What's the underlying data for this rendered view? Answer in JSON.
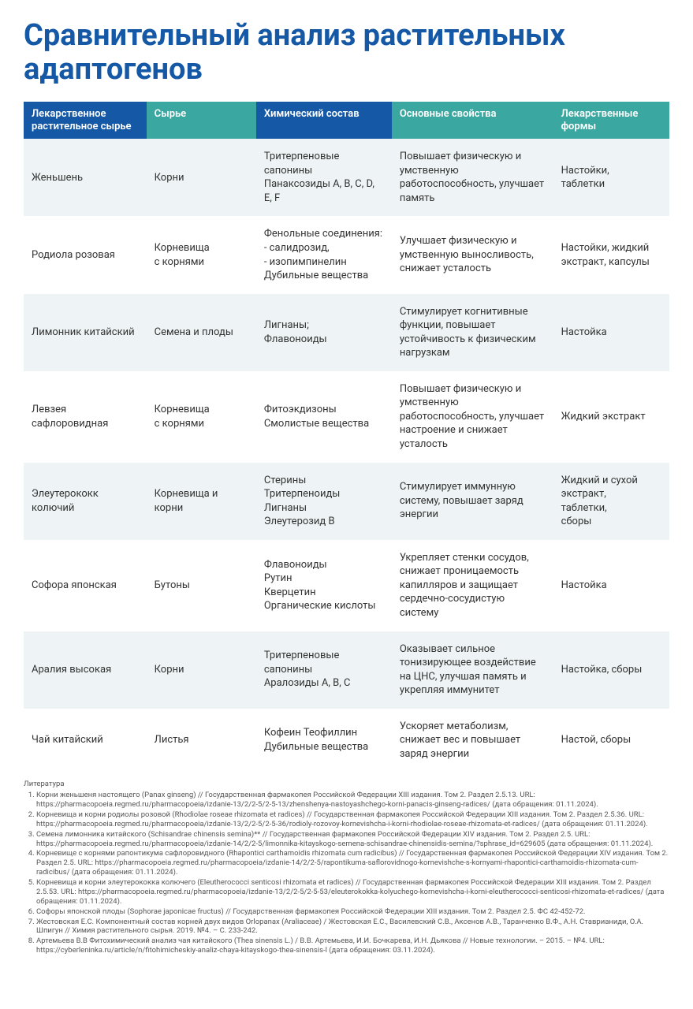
{
  "title": "Сравнительный анализ растительных адаптогенов",
  "table": {
    "headers": [
      {
        "text": "Лекарственное растительное сырье",
        "style": "blue"
      },
      {
        "text": "Сырье",
        "style": "teal"
      },
      {
        "text": "Химический состав",
        "style": "blue"
      },
      {
        "text": "Основные свойства",
        "style": "teal"
      },
      {
        "text": "Лекарственные формы",
        "style": "teal"
      }
    ],
    "row_bg_odd": "#eef4f5",
    "row_bg_even": "#ffffff",
    "header_bg_blue": "#1558a6",
    "header_bg_teal": "#3aa8a0",
    "header_text_color": "#ffffff",
    "body_text_color": "#333333",
    "body_fontsize": 13,
    "rows": [
      {
        "name": "Женьшень",
        "raw": "Корни",
        "chem": "Тритерпеновые сапонины\nПанаксозиды А, В, С, D, E, F",
        "prop": "Повышает физическую и умственную работоспособность, улучшает память",
        "form": "Настойки,\nтаблетки"
      },
      {
        "name": "Родиола розовая",
        "raw": "Корневища\nс корнями",
        "chem": "Фенольные соединения:\n- салидрозид,\n- изопимпинелин\nДубильные вещества",
        "prop": "Улучшает физическую и умственную выносливость, снижает усталость",
        "form": "Настойки, жидкий экстракт, капсулы"
      },
      {
        "name": "Лимонник китайский",
        "raw": "Семена и плоды",
        "chem": "Лигнаны;\nФлавоноиды",
        "prop": "Стимулирует когнитивные функции, повышает устойчивость к физическим нагрузкам",
        "form": "Настойка"
      },
      {
        "name": "Левзея сафлоровидная",
        "raw": "Корневища\nс корнями",
        "chem": "Фитоэкдизоны\nСмолистые вещества",
        "prop": "Повышает физическую и умственную работоспособность, улучшает настроение и снижает усталость",
        "form": "Жидкий экстракт"
      },
      {
        "name": "Элеутерококк колючий",
        "raw": "Корневища и корни",
        "chem": "Стерины\nТритерпеноиды\nЛигнаны\nЭлеутерозид В",
        "prop": "Стимулирует иммунную систему, повышает заряд энергии",
        "form": "Жидкий и сухой экстракт,\nтаблетки,\nсборы"
      },
      {
        "name": "Софора японская",
        "raw": "Бутоны",
        "chem": "Флавоноиды\nРутин\nКверцетин\nОрганические кислоты",
        "prop": "Укрепляет стенки сосудов, снижает проницаемость капилляров и защищает сердечно-сосудистую систему",
        "form": "Настойка"
      },
      {
        "name": "Аралия высокая",
        "raw": "Корни",
        "chem": "Тритерпеновые сапонины\nАралозиды А, В, С",
        "prop": "Оказывает сильное тонизирующее воздействие на ЦНС, улучшая память и укрепляя иммунитет",
        "form": "Настойка, сборы"
      },
      {
        "name": "Чай китайский",
        "raw": "Листья",
        "chem": "Кофеин Теофиллин\nДубильные вещества",
        "prop": "Ускоряет метаболизм, снижает вес и повышает заряд энергии",
        "form": "Настой, сборы"
      }
    ]
  },
  "refs": {
    "title": "Литература",
    "items": [
      "Корни женьшеня настоящего (Panax ginseng) // Государственная фармакопея Российской Федерации XIII издания. Том 2. Раздел 2.5.13. URL: https://pharmacopoeia.regmed.ru/pharmacopoeia/izdanie-13/2/2-5/2-5-13/zhenshenya-nastoyashchego-korni-panacis-ginseng-radices/ (дата обращения: 01.11.2024).",
      "Корневища и корни родиолы розовой (Rhodiolae roseae rhizomata et radices) // Государственная фармакопея Российской Федерации XIII издания. Том 2. Раздел 2.5.36. URL: https://pharmacopoeia.regmed.ru/pharmacopoeia/izdanie-13/2/2-5/2-5-36/rodioly-rozovoy-kornevishcha-i-korni-rhodiolae-roseae-rhizomata-et-radices/ (дата обращения: 01.11.2024).",
      "Семена лимонника китайского (Schisandrae chinensis semina)** // Государственная фармакопея Российской Федерации XIV издания. Том 2. Раздел 2.5. URL: https://pharmacopoeia.regmed.ru/pharmacopoeia/izdanie-14/2/2-5/limonnika-kitayskogo-semena-schisandrae-chinensidis-semina/?sphrase_id=629605 (дата обращения: 01.11.2024).",
      "Корневище с корнями рапонтикума сафлоровидного (Rhapontici carthamoidis rhizomata cum radicibus) // Государственная фармакопея Российской Федерации XIV издания. Том 2. Раздел 2.5. URL: https://pharmacopoeia.regmed.ru/pharmacopoeia/izdanie-14/2/2-5/rapontikuma-saflorovidnogo-kornevishche-s-kornyami-rhapontici-carthamoidis-rhizomata-cum-radicibus/ (дата обращения: 01.11.2024).",
      "Корневища и корни элеутерококка колючего (Eleutherococci senticosi rhizomata et radices) // Государственная фармакопея Российской Федерации XIII издания. Том 2. Раздел 2.5.53. URL: https://pharmacopoeia.regmed.ru/pharmacopoeia/izdanie-13/2/2-5/2-5-53/eleuterokokka-kolyuchego-kornevishcha-i-korni-eleutherococci-senticosi-rhizomata-et-radices/ (дата обращения: 01.11.2024).",
      "Софоры японской плоды (Sophorae japonicae fructus) // Государственная фармакопея Российской Федерации XIII издания. Том 2. Раздел 2.5. ФС 42-452-72.",
      "Жестовская Е.С. Компонентный состав корней двух видов Orlopanax (Araliaceae) / Жестовская Е.С., Василевский С.В., Аксенов А.В., Таранченко В.Ф., А.Н. Ставрианиди, О.А. Шпигун // Химия растительного сырья. 2019. №4. – С. 233-242.",
      "Артемьева В.В Фитохимический анализ чая китайского (Thea sinensis L.) / В.В. Артемьева, И.И. Бочкарева, И.Н. Дьякова // Новые технологии. – 2015. – №4. URL: https://cyberleninka.ru/article/n/fitohimicheskiy-analiz-chaya-kitayskogo-thea-sinensis-l (дата обращения: 03.11.2024)."
    ]
  }
}
